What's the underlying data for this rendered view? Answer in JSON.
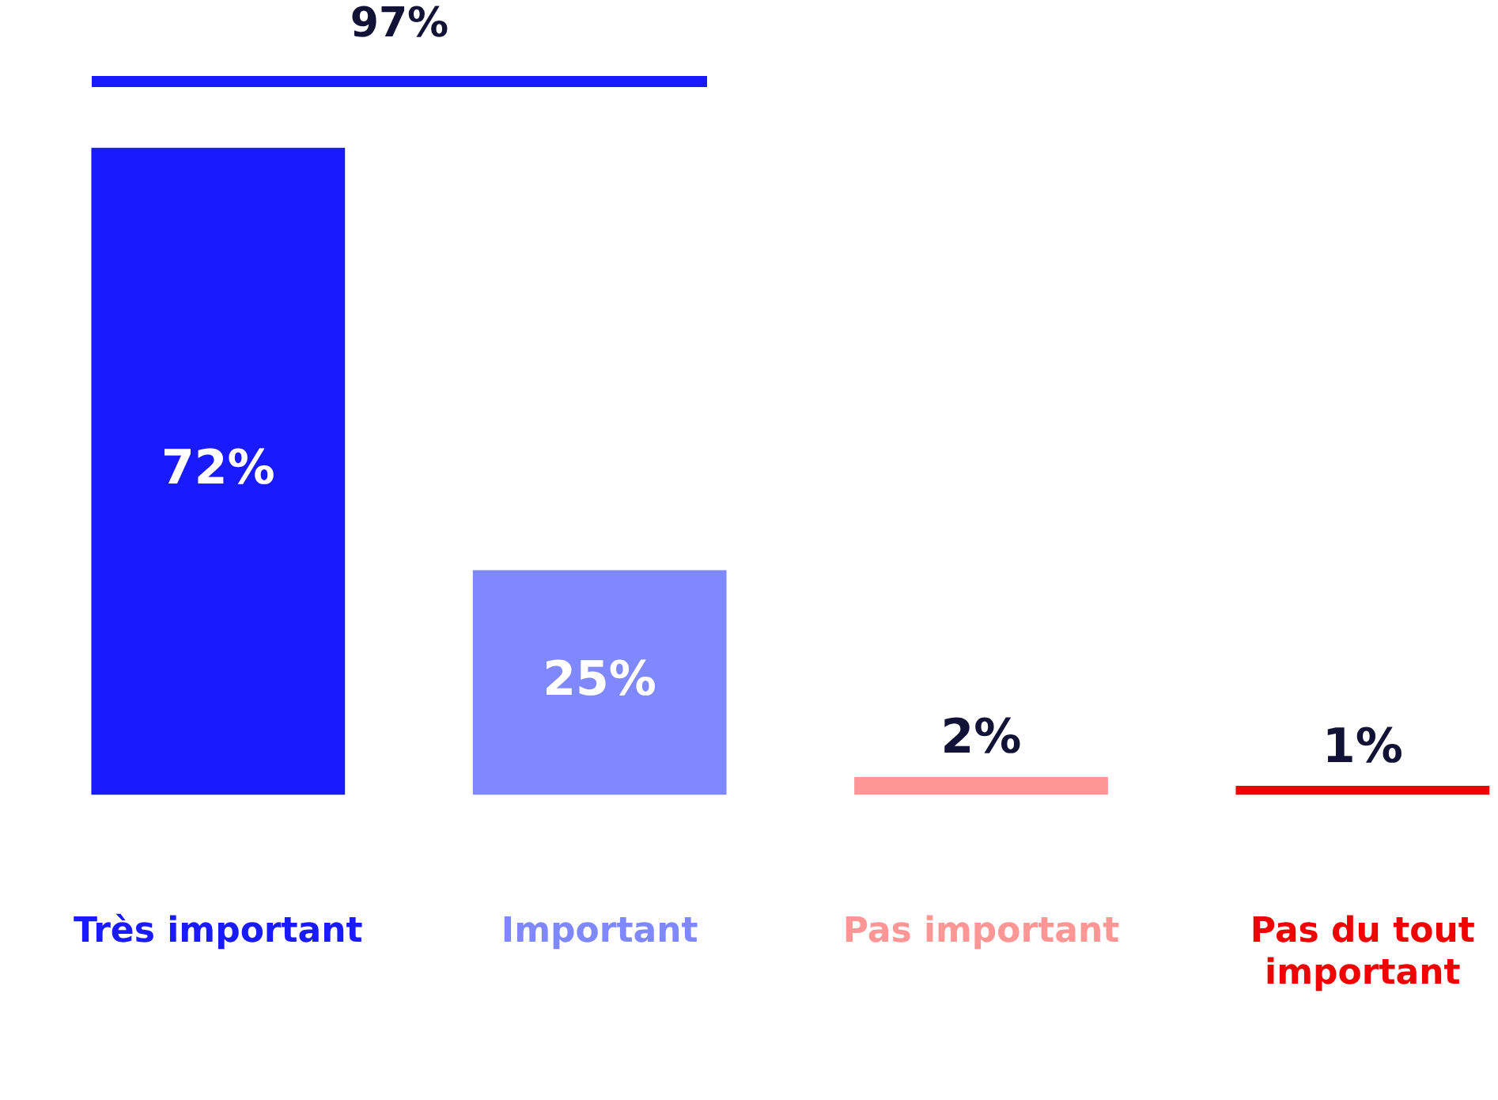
{
  "chart_data": {
    "type": "bar",
    "categories": [
      "Très important",
      "Important",
      "Pas important",
      "Pas du tout important"
    ],
    "values": [
      72,
      25,
      2,
      1
    ],
    "colors": [
      "#1a1aff",
      "#8088ff",
      "#ff9696",
      "#f00000"
    ],
    "value_labels": [
      "72%",
      "25%",
      "2%",
      "1%"
    ],
    "annotations": [
      "97%"
    ]
  }
}
